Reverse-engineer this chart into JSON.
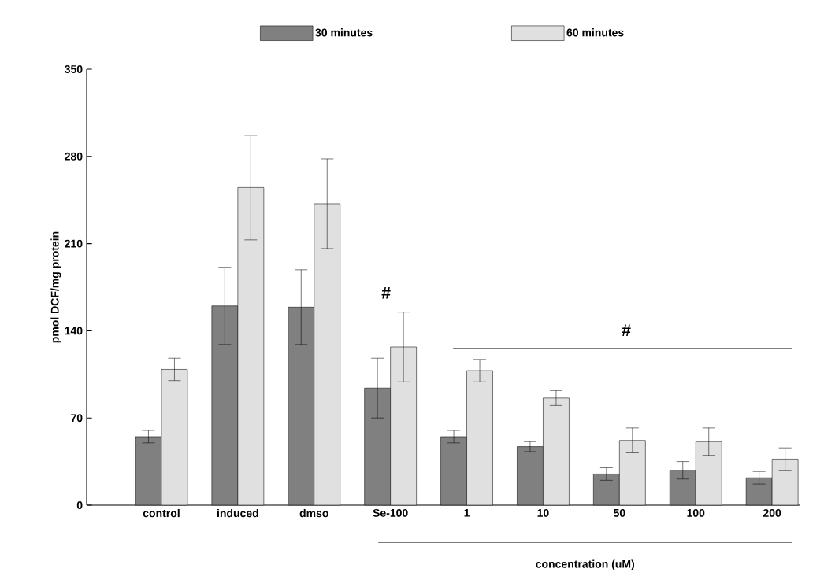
{
  "chart_data": {
    "type": "bar",
    "ylabel": "pmol DCF/mg protein",
    "xlabel": "concentration (uM)",
    "categories": [
      "control",
      "induced",
      "dmso",
      "Se-100",
      "1",
      "10",
      "50",
      "100",
      "200"
    ],
    "series": [
      {
        "name": "30 minutes",
        "color": "#808080",
        "values": [
          55,
          160,
          159,
          94,
          55,
          47,
          25,
          28,
          22
        ],
        "errors": [
          5,
          31,
          30,
          24,
          5,
          4,
          5,
          7,
          5
        ]
      },
      {
        "name": "60 minutes",
        "color": "#e0e0e0",
        "values": [
          109,
          255,
          242,
          127,
          108,
          86,
          52,
          51,
          37
        ],
        "errors": [
          9,
          42,
          36,
          28,
          9,
          6,
          10,
          11,
          9
        ]
      }
    ],
    "ylim": [
      0,
      350
    ],
    "yticks": [
      0,
      70,
      140,
      210,
      280,
      350
    ],
    "grid": false,
    "legend": "top",
    "annotations": [
      "#"
    ],
    "ref_lines": [
      {
        "axis": "y",
        "value": 126,
        "label": "#"
      }
    ]
  }
}
